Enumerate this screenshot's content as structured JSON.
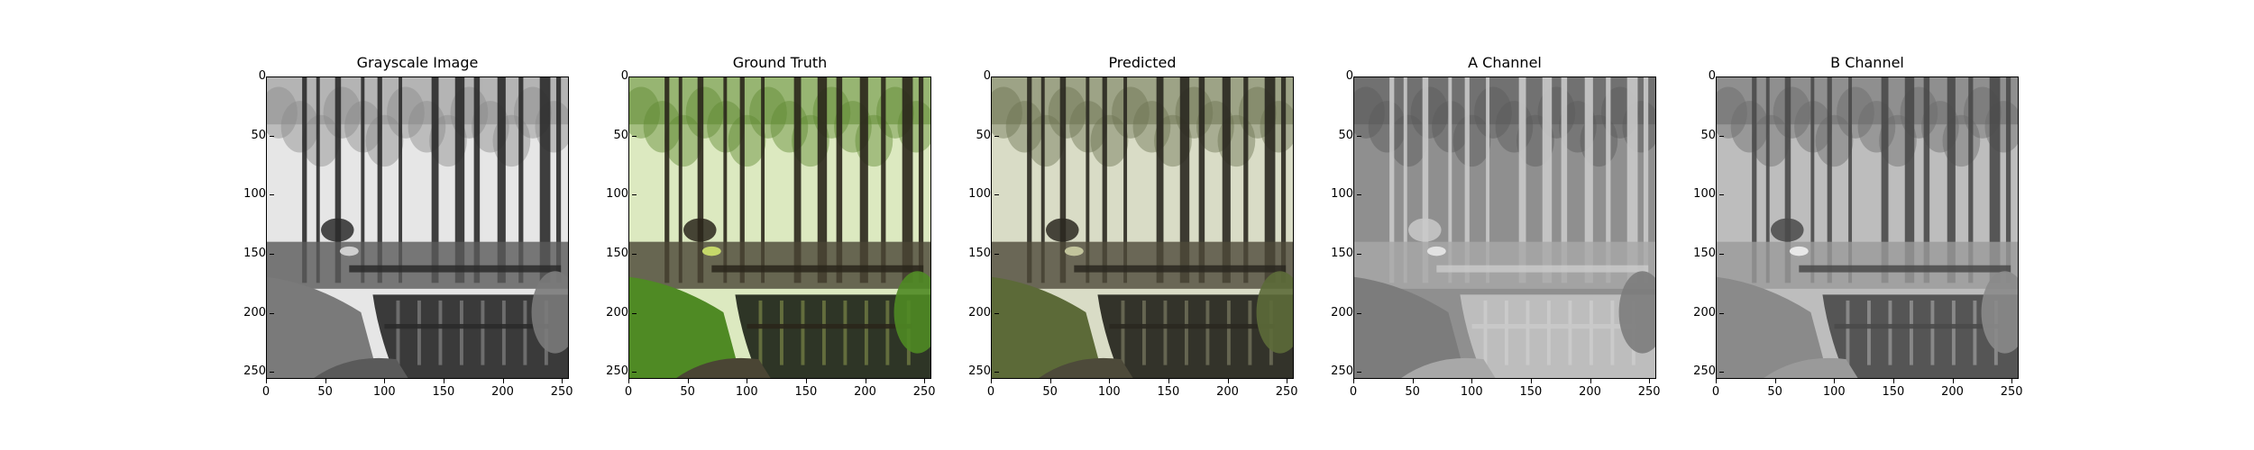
{
  "figure": {
    "panels": [
      {
        "title": "Grayscale Image",
        "kind": "grayscale"
      },
      {
        "title": "Ground Truth",
        "kind": "color"
      },
      {
        "title": "Predicted",
        "kind": "predicted"
      },
      {
        "title": "A Channel",
        "kind": "a-channel"
      },
      {
        "title": "B Channel",
        "kind": "b-channel"
      }
    ],
    "y_ticks": [
      "0",
      "50",
      "100",
      "150",
      "200",
      "250"
    ],
    "x_ticks": [
      "0",
      "50",
      "100",
      "150",
      "200",
      "250"
    ],
    "image_extent": [
      0,
      256
    ]
  },
  "colors": {
    "frame": "#000000",
    "background": "#ffffff"
  }
}
